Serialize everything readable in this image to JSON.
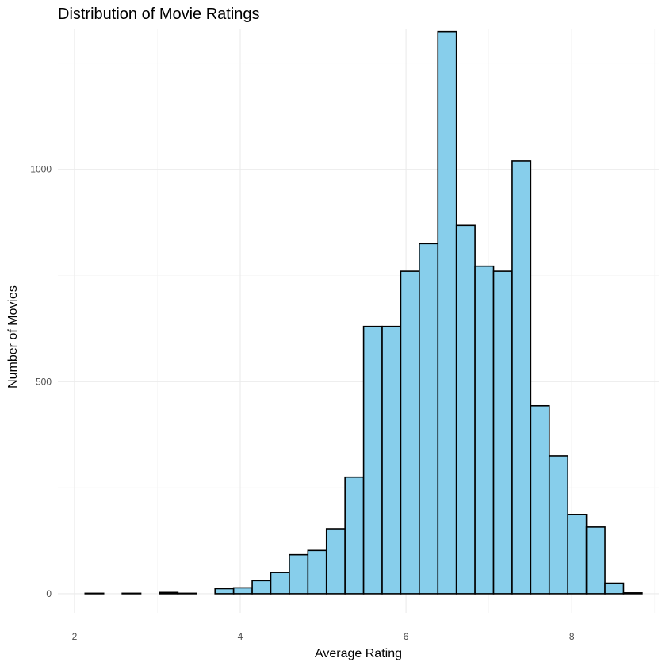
{
  "chart_data": {
    "type": "bar",
    "title": "Distribution of Movie Ratings",
    "xlabel": "Average Rating",
    "ylabel": "Number of Movies",
    "xlim": [
      1.8,
      9.05
    ],
    "ylim": [
      -45,
      1330
    ],
    "x_ticks": [
      2,
      4,
      6,
      8
    ],
    "y_ticks": [
      0,
      500,
      1000
    ],
    "grid": true,
    "fill_color": "#87CEEB",
    "edge_color": "#000000",
    "bin_width": 0.224,
    "bins": [
      {
        "x": 2.24,
        "count": 1
      },
      {
        "x": 2.464,
        "count": 0
      },
      {
        "x": 2.688,
        "count": 1
      },
      {
        "x": 2.912,
        "count": 0
      },
      {
        "x": 3.136,
        "count": 3
      },
      {
        "x": 3.36,
        "count": 1
      },
      {
        "x": 3.584,
        "count": 0
      },
      {
        "x": 3.808,
        "count": 12
      },
      {
        "x": 4.032,
        "count": 14
      },
      {
        "x": 4.256,
        "count": 31
      },
      {
        "x": 4.48,
        "count": 50
      },
      {
        "x": 4.704,
        "count": 92
      },
      {
        "x": 4.928,
        "count": 102
      },
      {
        "x": 5.152,
        "count": 153
      },
      {
        "x": 5.376,
        "count": 275
      },
      {
        "x": 5.6,
        "count": 630
      },
      {
        "x": 5.824,
        "count": 630
      },
      {
        "x": 6.048,
        "count": 760
      },
      {
        "x": 6.272,
        "count": 825
      },
      {
        "x": 6.496,
        "count": 1325
      },
      {
        "x": 6.72,
        "count": 868
      },
      {
        "x": 6.944,
        "count": 772
      },
      {
        "x": 7.168,
        "count": 760
      },
      {
        "x": 7.392,
        "count": 1020
      },
      {
        "x": 7.616,
        "count": 443
      },
      {
        "x": 7.84,
        "count": 325
      },
      {
        "x": 8.064,
        "count": 187
      },
      {
        "x": 8.288,
        "count": 157
      },
      {
        "x": 8.512,
        "count": 25
      },
      {
        "x": 8.736,
        "count": 2
      }
    ]
  }
}
